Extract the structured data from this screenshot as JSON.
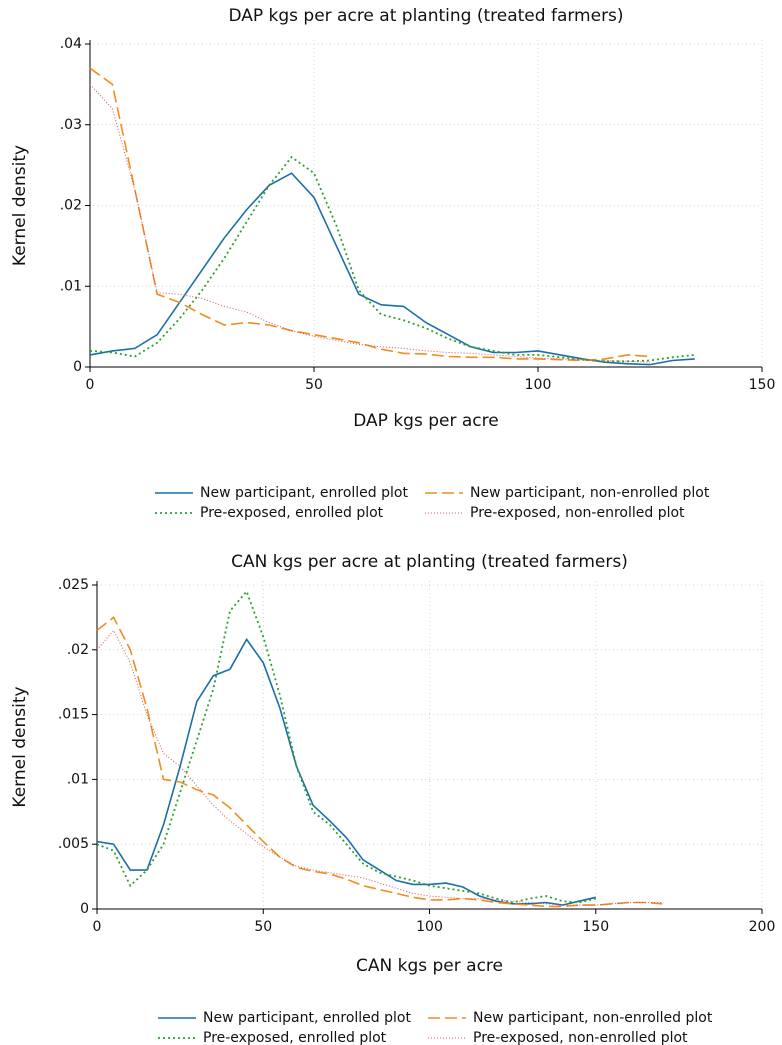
{
  "chart_data": [
    {
      "type": "line",
      "title": "DAP kgs per acre at planting (treated farmers)",
      "x_label": "DAP kgs per acre",
      "y_label": "Kernel density",
      "x": [
        0,
        5,
        10,
        15,
        20,
        25,
        30,
        35,
        40,
        45,
        50,
        55,
        60,
        65,
        70,
        75,
        80,
        85,
        90,
        95,
        100,
        105,
        110,
        115,
        120,
        125,
        130,
        135
      ],
      "xlim": [
        0,
        150
      ],
      "xticks": [
        0,
        50,
        100,
        150
      ],
      "ylim": [
        0,
        0.04
      ],
      "yticks": [
        0,
        {
          "value": 0.01,
          "label": ".01"
        },
        {
          "value": 0.02,
          "label": ".02"
        },
        {
          "value": 0.03,
          "label": ".03"
        },
        {
          "value": 0.04,
          "label": ".04"
        }
      ],
      "grid": true,
      "series": [
        {
          "name": "New participant, enrolled plot",
          "color": "#1a6fa6",
          "style": "solid",
          "values": [
            0.0015,
            0.002,
            0.0023,
            0.004,
            0.008,
            0.012,
            0.016,
            0.0195,
            0.0225,
            0.024,
            0.021,
            0.015,
            0.009,
            0.0077,
            0.0075,
            0.0055,
            0.004,
            0.0025,
            0.0018,
            0.0018,
            0.002,
            0.0015,
            0.001,
            0.0006,
            0.0004,
            0.0003,
            0.0008,
            0.001
          ]
        },
        {
          "name": "New participant, non-enrolled plot",
          "color": "#f28c1e",
          "style": "dash",
          "values": [
            0.037,
            0.035,
            0.022,
            0.009,
            0.008,
            0.0065,
            0.0052,
            0.0055,
            0.0052,
            0.0045,
            0.004,
            0.0035,
            0.003,
            0.0022,
            0.0017,
            0.0016,
            0.0013,
            0.0012,
            0.0012,
            0.001,
            0.001,
            0.0009,
            0.0008,
            0.001,
            0.0015,
            0.0013,
            null,
            null
          ]
        },
        {
          "name": "Pre-exposed, enrolled plot",
          "color": "#2ca02c",
          "style": "dot",
          "values": [
            0.002,
            0.0018,
            0.0013,
            0.003,
            0.006,
            0.0095,
            0.0135,
            0.018,
            0.0225,
            0.026,
            0.024,
            0.0175,
            0.0095,
            0.0065,
            0.0058,
            0.0048,
            0.0035,
            0.0025,
            0.002,
            0.0015,
            0.0015,
            0.0012,
            0.0009,
            0.0007,
            0.0007,
            0.0008,
            0.0012,
            0.0015
          ]
        },
        {
          "name": "Pre-exposed, non-enrolled plot",
          "color": "#d9534f",
          "style": "fine",
          "values": [
            0.035,
            0.032,
            0.022,
            0.0092,
            0.009,
            0.0085,
            0.0075,
            0.0068,
            0.0055,
            0.0045,
            0.0038,
            0.0033,
            0.0028,
            0.0025,
            0.0023,
            0.002,
            0.0018,
            0.0017,
            0.0015,
            0.0013,
            0.0011,
            0.001,
            0.0009,
            0.0008,
            0.0007,
            0.0006,
            null,
            null
          ]
        }
      ]
    },
    {
      "type": "line",
      "title": "CAN kgs per acre at planting (treated farmers)",
      "x_label": "CAN kgs per acre",
      "y_label": "Kernel density",
      "x": [
        0,
        5,
        10,
        15,
        20,
        25,
        30,
        35,
        40,
        45,
        50,
        55,
        60,
        65,
        70,
        75,
        80,
        85,
        90,
        95,
        100,
        105,
        110,
        115,
        120,
        125,
        130,
        135,
        140,
        145,
        150,
        155,
        160,
        165,
        170
      ],
      "xlim": [
        0,
        200
      ],
      "xticks": [
        0,
        50,
        100,
        150,
        200
      ],
      "ylim": [
        0,
        0.025
      ],
      "yticks": [
        0,
        {
          "value": 0.005,
          "label": ".005"
        },
        {
          "value": 0.01,
          "label": ".01"
        },
        {
          "value": 0.015,
          "label": ".015"
        },
        {
          "value": 0.02,
          "label": ".02"
        },
        {
          "value": 0.025,
          "label": ".025"
        }
      ],
      "grid": true,
      "series": [
        {
          "name": "New participant, enrolled plot",
          "color": "#1a6fa6",
          "style": "solid",
          "values": [
            0.0052,
            0.005,
            0.003,
            0.003,
            0.0065,
            0.011,
            0.016,
            0.018,
            0.0185,
            0.0208,
            0.019,
            0.0155,
            0.011,
            0.008,
            0.0068,
            0.0055,
            0.0038,
            0.003,
            0.0022,
            0.0019,
            0.0019,
            0.002,
            0.0017,
            0.001,
            0.0006,
            0.0004,
            0.0004,
            0.0005,
            0.0003,
            0.0006,
            0.0009,
            null,
            null,
            null,
            null
          ]
        },
        {
          "name": "New participant, non-enrolled plot",
          "color": "#f28c1e",
          "style": "dash",
          "values": [
            0.0215,
            0.0225,
            0.02,
            0.0155,
            0.01,
            0.0098,
            0.0092,
            0.0088,
            0.0078,
            0.0065,
            0.0052,
            0.004,
            0.0032,
            0.0029,
            0.0027,
            0.0023,
            0.0018,
            0.0015,
            0.0012,
            0.0009,
            0.0007,
            0.0007,
            0.0008,
            0.0007,
            0.0005,
            0.0004,
            0.0003,
            0.0002,
            0.0002,
            0.0003,
            0.0003,
            0.0004,
            0.0005,
            0.0005,
            0.0004
          ]
        },
        {
          "name": "Pre-exposed, enrolled plot",
          "color": "#2ca02c",
          "style": "dot",
          "values": [
            0.005,
            0.0045,
            0.0018,
            0.003,
            0.005,
            0.009,
            0.013,
            0.017,
            0.023,
            0.0245,
            0.021,
            0.0165,
            0.011,
            0.0075,
            0.0065,
            0.005,
            0.0035,
            0.0028,
            0.0025,
            0.0022,
            0.0018,
            0.0016,
            0.0014,
            0.0012,
            0.0008,
            0.0005,
            0.0008,
            0.001,
            0.0006,
            0.0005,
            0.0008,
            null,
            null,
            null,
            null
          ]
        },
        {
          "name": "Pre-exposed, non-enrolled plot",
          "color": "#d9534f",
          "style": "fine",
          "values": [
            0.02,
            0.0215,
            0.019,
            0.015,
            0.012,
            0.011,
            0.0095,
            0.008,
            0.0068,
            0.0058,
            0.0048,
            0.004,
            0.0033,
            0.003,
            0.0028,
            0.0026,
            0.0024,
            0.002,
            0.0016,
            0.0012,
            0.001,
            0.0009,
            0.0008,
            0.0008,
            0.0007,
            0.0006,
            0.0005,
            0.0004,
            0.0003,
            0.0003,
            0.0003,
            0.0004,
            0.0005,
            0.0005,
            0.0005
          ]
        }
      ]
    }
  ]
}
